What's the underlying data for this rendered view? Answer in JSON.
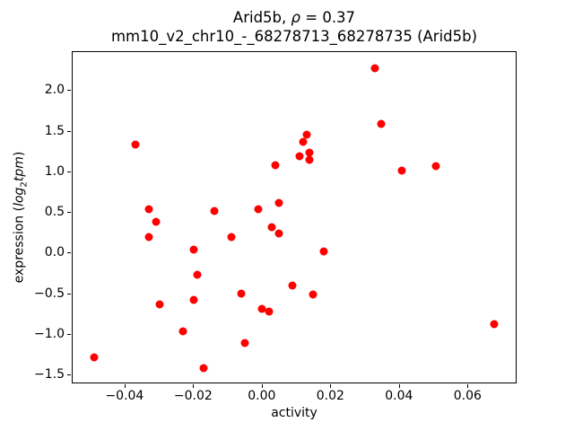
{
  "figure": {
    "title": {
      "prefix": "Arid5b, ",
      "rho": "ρ",
      "rho_suffix": " = 0.37",
      "line2": "mm10_v2_chr10_-_68278713_68278735 (Arid5b)"
    },
    "xaxis": {
      "label": "activity",
      "ticks": [
        {
          "value": -0.04,
          "label": "−0.04"
        },
        {
          "value": -0.02,
          "label": "−0.02"
        },
        {
          "value": 0.0,
          "label": "0.00"
        },
        {
          "value": 0.02,
          "label": "0.02"
        },
        {
          "value": 0.04,
          "label": "0.04"
        },
        {
          "value": 0.06,
          "label": "0.06"
        }
      ]
    },
    "yaxis": {
      "label_prefix": "expression (",
      "label_italic1": "log",
      "label_sub": "2",
      "label_italic2": "tpm",
      "label_suffix": ")",
      "ticks": [
        {
          "value": 2.0,
          "label": "2.0"
        },
        {
          "value": 1.5,
          "label": "1.5"
        },
        {
          "value": 1.0,
          "label": "1.0"
        },
        {
          "value": 0.5,
          "label": "0.5"
        },
        {
          "value": 0.0,
          "label": "0.0"
        },
        {
          "value": -0.5,
          "label": "−0.5"
        },
        {
          "value": -1.0,
          "label": "−1.0"
        },
        {
          "value": -1.5,
          "label": "−1.5"
        }
      ]
    }
  },
  "chart_data": {
    "type": "scatter",
    "title": "Arid5b, ρ = 0.37",
    "subtitle": "mm10_v2_chr10_-_68278713_68278735 (Arid5b)",
    "correlation_rho": 0.37,
    "xlabel": "activity",
    "ylabel": "expression (log2 tpm)",
    "grid": false,
    "legend": "none",
    "marker_color": "#ff0000",
    "marker_size_px": 9,
    "xlim": [
      -0.0554,
      0.0743
    ],
    "ylim": [
      -1.61,
      2.48
    ],
    "xticks": [
      -0.04,
      -0.02,
      0.0,
      0.02,
      0.04,
      0.06
    ],
    "yticks": [
      2.0,
      1.5,
      1.0,
      0.5,
      0.0,
      -0.5,
      -1.0,
      -1.5
    ],
    "points": [
      [
        -0.049,
        -1.3
      ],
      [
        -0.037,
        1.34
      ],
      [
        -0.033,
        0.54
      ],
      [
        -0.033,
        0.19
      ],
      [
        -0.031,
        0.38
      ],
      [
        -0.03,
        -0.64
      ],
      [
        -0.023,
        -0.98
      ],
      [
        -0.02,
        0.03
      ],
      [
        -0.02,
        -0.59
      ],
      [
        -0.019,
        -0.28
      ],
      [
        -0.017,
        -1.43
      ],
      [
        -0.014,
        0.51
      ],
      [
        -0.009,
        0.19
      ],
      [
        -0.006,
        -0.51
      ],
      [
        -0.005,
        -1.12
      ],
      [
        -0.001,
        0.54
      ],
      [
        0.0,
        -0.7
      ],
      [
        0.002,
        -0.73
      ],
      [
        0.003,
        0.31
      ],
      [
        0.004,
        1.08
      ],
      [
        0.005,
        0.61
      ],
      [
        0.005,
        0.23
      ],
      [
        0.009,
        -0.41
      ],
      [
        0.011,
        1.19
      ],
      [
        0.012,
        1.37
      ],
      [
        0.013,
        1.46
      ],
      [
        0.014,
        1.24
      ],
      [
        0.014,
        1.15
      ],
      [
        0.015,
        -0.52
      ],
      [
        0.018,
        0.01
      ],
      [
        0.033,
        2.28
      ],
      [
        0.035,
        1.59
      ],
      [
        0.041,
        1.01
      ],
      [
        0.051,
        1.07
      ],
      [
        0.068,
        -0.89
      ]
    ]
  }
}
